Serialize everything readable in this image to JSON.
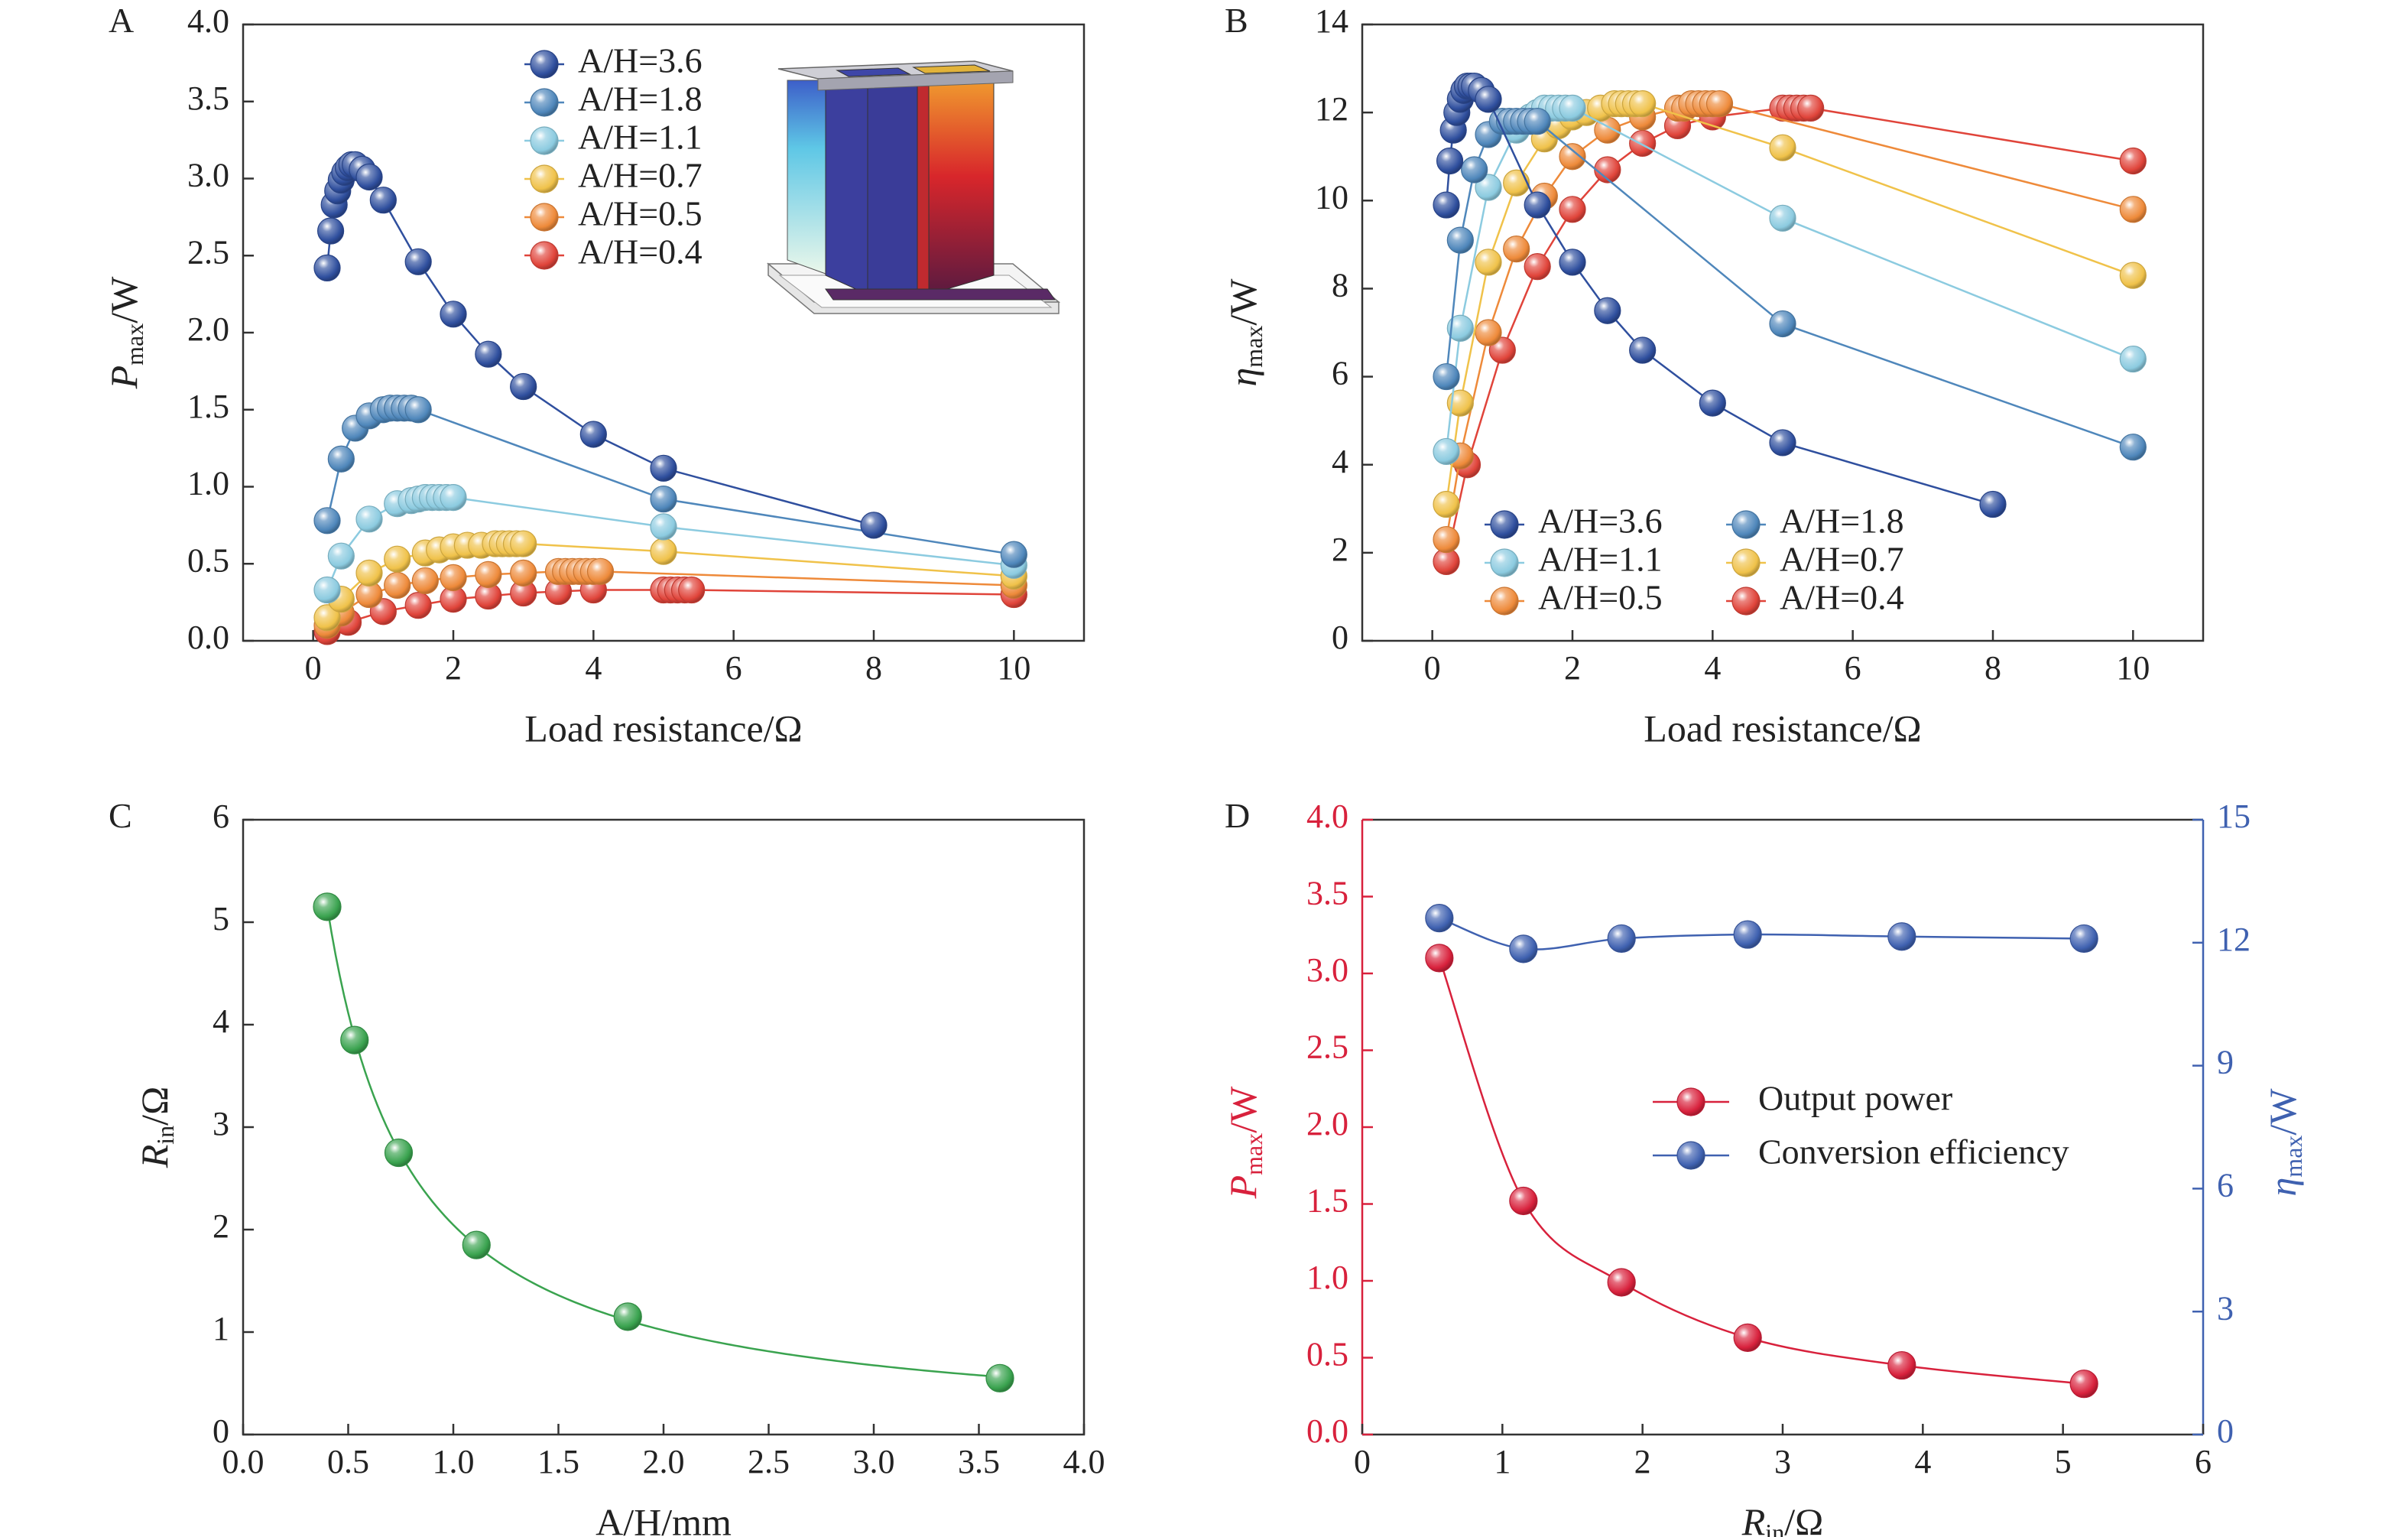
{
  "chart_data": [
    {
      "panel": "A",
      "type": "line",
      "xlabel": "Load resistance/Ω",
      "ylabel": {
        "main": "P",
        "sub": "max",
        "unit": "/W"
      },
      "xlim": [
        -1,
        11
      ],
      "ylim": [
        0,
        4
      ],
      "xticks": [
        0,
        2,
        4,
        6,
        8,
        10
      ],
      "yticks": [
        0.0,
        0.5,
        1.0,
        1.5,
        2.0,
        2.5,
        3.0,
        3.5,
        4.0
      ],
      "yticks_decimals": 1,
      "legend_position": "top-center",
      "legend_columns": 1,
      "inset": "3D thermoelectric leg module illustration",
      "series": [
        {
          "name": "A/H=3.6",
          "color": "#2f4f9e",
          "x": [
            0.2,
            0.25,
            0.3,
            0.35,
            0.4,
            0.45,
            0.5,
            0.55,
            0.6,
            0.7,
            0.8,
            1.0,
            1.5,
            2.0,
            2.5,
            3.0,
            4.0,
            5.0,
            8.0
          ],
          "y": [
            2.42,
            2.66,
            2.83,
            2.92,
            2.99,
            3.04,
            3.07,
            3.09,
            3.09,
            3.06,
            3.01,
            2.86,
            2.46,
            2.12,
            1.86,
            1.65,
            1.34,
            1.12,
            0.75
          ]
        },
        {
          "name": "A/H=1.8",
          "color": "#4f87bb",
          "x": [
            0.2,
            0.4,
            0.6,
            0.8,
            1.0,
            1.1,
            1.2,
            1.3,
            1.4,
            1.5,
            5.0,
            10.0
          ],
          "y": [
            0.78,
            1.18,
            1.38,
            1.46,
            1.5,
            1.51,
            1.51,
            1.51,
            1.51,
            1.5,
            0.92,
            0.56
          ]
        },
        {
          "name": "A/H=1.1",
          "color": "#8ccbe0",
          "x": [
            0.2,
            0.4,
            0.8,
            1.2,
            1.4,
            1.5,
            1.6,
            1.7,
            1.8,
            1.9,
            2.0,
            5.0,
            10.0
          ],
          "y": [
            0.33,
            0.55,
            0.79,
            0.89,
            0.91,
            0.92,
            0.93,
            0.93,
            0.93,
            0.93,
            0.93,
            0.74,
            0.49
          ]
        },
        {
          "name": "A/H=0.7",
          "color": "#f0c24a",
          "x": [
            0.2,
            0.4,
            0.8,
            1.2,
            1.6,
            1.8,
            2.0,
            2.2,
            2.4,
            2.6,
            2.7,
            2.8,
            2.9,
            3.0,
            5.0,
            10.0
          ],
          "y": [
            0.15,
            0.27,
            0.44,
            0.53,
            0.57,
            0.59,
            0.61,
            0.62,
            0.62,
            0.63,
            0.63,
            0.63,
            0.63,
            0.63,
            0.58,
            0.42
          ]
        },
        {
          "name": "A/H=0.5",
          "color": "#ee8a3a",
          "x": [
            0.2,
            0.4,
            0.8,
            1.2,
            1.6,
            2.0,
            2.5,
            3.0,
            3.5,
            3.6,
            3.7,
            3.8,
            3.9,
            4.0,
            4.1,
            10.0
          ],
          "y": [
            0.1,
            0.18,
            0.3,
            0.36,
            0.39,
            0.41,
            0.43,
            0.44,
            0.45,
            0.45,
            0.45,
            0.45,
            0.45,
            0.45,
            0.45,
            0.36
          ]
        },
        {
          "name": "A/H=0.4",
          "color": "#e0443a",
          "x": [
            0.2,
            0.5,
            1.0,
            1.5,
            2.0,
            2.5,
            3.0,
            3.5,
            4.0,
            5.0,
            5.1,
            5.2,
            5.3,
            5.4,
            10.0
          ],
          "y": [
            0.06,
            0.12,
            0.19,
            0.23,
            0.27,
            0.29,
            0.31,
            0.32,
            0.33,
            0.33,
            0.33,
            0.33,
            0.33,
            0.33,
            0.3
          ]
        }
      ]
    },
    {
      "panel": "B",
      "type": "line",
      "xlabel": "Load resistance/Ω",
      "ylabel": {
        "main": "η",
        "sub": "max",
        "unit": "/W"
      },
      "xlim": [
        -1,
        11
      ],
      "ylim": [
        0,
        14
      ],
      "xticks": [
        0,
        2,
        4,
        6,
        8,
        10
      ],
      "yticks": [
        0,
        2,
        4,
        6,
        8,
        10,
        12,
        14
      ],
      "yticks_decimals": 0,
      "legend_position": "bottom-left",
      "legend_columns": 2,
      "series": [
        {
          "name": "A/H=3.6",
          "color": "#2f4f9e",
          "x": [
            0.2,
            0.25,
            0.3,
            0.35,
            0.4,
            0.45,
            0.5,
            0.55,
            0.6,
            0.7,
            0.8,
            1.5,
            2.0,
            2.5,
            3.0,
            4.0,
            5.0,
            8.0
          ],
          "y": [
            9.9,
            10.9,
            11.6,
            12.0,
            12.3,
            12.5,
            12.6,
            12.6,
            12.6,
            12.5,
            12.3,
            9.9,
            8.6,
            7.5,
            6.6,
            5.4,
            4.5,
            3.1
          ]
        },
        {
          "name": "A/H=1.8",
          "color": "#4f87bb",
          "x": [
            0.2,
            0.4,
            0.6,
            0.8,
            1.0,
            1.1,
            1.2,
            1.3,
            1.4,
            1.5,
            5.0,
            10.0
          ],
          "y": [
            6.0,
            9.1,
            10.7,
            11.5,
            11.8,
            11.8,
            11.8,
            11.8,
            11.8,
            11.8,
            7.2,
            4.4
          ]
        },
        {
          "name": "A/H=1.1",
          "color": "#8ccbe0",
          "x": [
            0.2,
            0.4,
            0.8,
            1.2,
            1.4,
            1.5,
            1.6,
            1.7,
            1.8,
            1.9,
            2.0,
            5.0,
            10.0
          ],
          "y": [
            4.3,
            7.1,
            10.3,
            11.6,
            11.9,
            12.0,
            12.1,
            12.1,
            12.1,
            12.1,
            12.1,
            9.6,
            6.4
          ]
        },
        {
          "name": "A/H=0.7",
          "color": "#f0c24a",
          "x": [
            0.2,
            0.4,
            0.8,
            1.2,
            1.6,
            1.8,
            2.0,
            2.2,
            2.4,
            2.6,
            2.7,
            2.8,
            2.9,
            3.0,
            5.0,
            10.0
          ],
          "y": [
            3.1,
            5.4,
            8.6,
            10.4,
            11.4,
            11.7,
            11.9,
            12.0,
            12.1,
            12.2,
            12.2,
            12.2,
            12.2,
            12.2,
            11.2,
            8.3
          ]
        },
        {
          "name": "A/H=0.5",
          "color": "#ee8a3a",
          "x": [
            0.2,
            0.4,
            0.8,
            1.2,
            1.6,
            2.0,
            2.5,
            3.0,
            3.5,
            3.6,
            3.7,
            3.8,
            3.9,
            4.0,
            4.1,
            10.0
          ],
          "y": [
            2.3,
            4.2,
            7.0,
            8.9,
            10.1,
            11.0,
            11.6,
            11.9,
            12.1,
            12.1,
            12.2,
            12.2,
            12.2,
            12.2,
            12.2,
            9.8
          ]
        },
        {
          "name": "A/H=0.4",
          "color": "#e0443a",
          "x": [
            0.2,
            0.5,
            1.0,
            1.5,
            2.0,
            2.5,
            3.0,
            3.5,
            4.0,
            5.0,
            5.1,
            5.2,
            5.3,
            5.4,
            10.0
          ],
          "y": [
            1.8,
            4.0,
            6.6,
            8.5,
            9.8,
            10.7,
            11.3,
            11.7,
            11.9,
            12.1,
            12.1,
            12.1,
            12.1,
            12.1,
            10.9
          ]
        }
      ]
    },
    {
      "panel": "C",
      "type": "scatter",
      "xlabel": "A/H/mm",
      "ylabel": {
        "main": "R",
        "sub": "in",
        "unit": "/Ω"
      },
      "xlim": [
        0,
        4
      ],
      "ylim": [
        0,
        6
      ],
      "xticks": [
        0.0,
        0.5,
        1.0,
        1.5,
        2.0,
        2.5,
        3.0,
        3.5,
        4.0
      ],
      "yticks": [
        0,
        1,
        2,
        3,
        4,
        5,
        6
      ],
      "xticks_decimals": 1,
      "yticks_decimals": 0,
      "fit_curve": true,
      "series": [
        {
          "color": "#3aa34f",
          "x": [
            0.4,
            0.53,
            0.74,
            1.11,
            1.83,
            3.6
          ],
          "y": [
            5.15,
            3.85,
            2.75,
            1.85,
            1.15,
            0.55
          ]
        }
      ]
    },
    {
      "panel": "D",
      "type": "line",
      "xlabel": {
        "main": "R",
        "sub": "in",
        "unit": "/Ω"
      },
      "ylabel_left": {
        "main": "P",
        "sub": "max",
        "unit": "/W",
        "color": "#d8213c"
      },
      "ylabel_right": {
        "main": "η",
        "sub": "max",
        "unit": "/W",
        "color": "#3f61b0"
      },
      "xlim": [
        0,
        6
      ],
      "ylim_left": [
        0,
        4
      ],
      "ylim_right": [
        0,
        15
      ],
      "xticks": [
        0,
        1,
        2,
        3,
        4,
        5,
        6
      ],
      "yticks_left": [
        0.0,
        0.5,
        1.0,
        1.5,
        2.0,
        2.5,
        3.0,
        3.5,
        4.0
      ],
      "yticks_right": [
        0,
        3,
        6,
        9,
        12,
        15
      ],
      "legend_position": "center-right",
      "series": [
        {
          "name": "Output power",
          "axis": "left",
          "color": "#d8213c",
          "x": [
            0.55,
            1.15,
            1.85,
            2.75,
            3.85,
            5.15
          ],
          "y": [
            3.1,
            1.52,
            0.99,
            0.63,
            0.45,
            0.33
          ]
        },
        {
          "name": "Conversion efficiency",
          "axis": "right",
          "color": "#3f61b0",
          "x": [
            0.55,
            1.15,
            1.85,
            2.75,
            3.85,
            5.15
          ],
          "y": [
            12.6,
            11.85,
            12.1,
            12.2,
            12.15,
            12.1
          ]
        }
      ]
    }
  ]
}
